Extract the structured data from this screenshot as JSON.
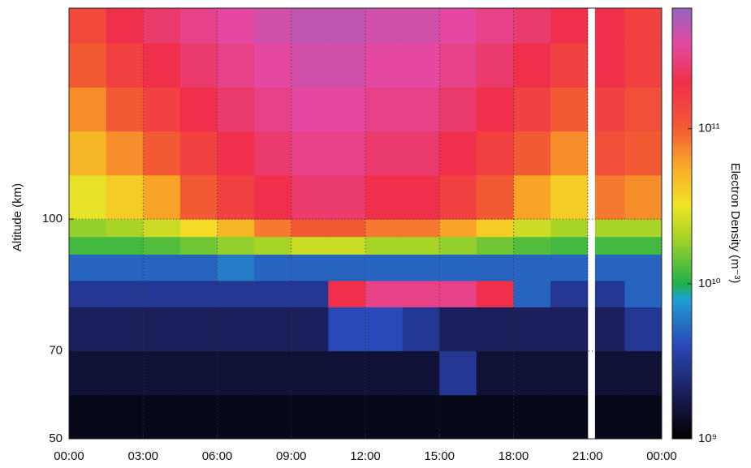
{
  "chart_data": {
    "type": "heatmap",
    "ylabel": "Altitude (km)",
    "colorbar_label": "Electron Density (m⁻³)",
    "xlim": [
      0,
      24
    ],
    "xticks": [
      {
        "value": 0,
        "label": "00:00"
      },
      {
        "value": 3,
        "label": "03:00"
      },
      {
        "value": 6,
        "label": "06:00"
      },
      {
        "value": 9,
        "label": "09:00"
      },
      {
        "value": 12,
        "label": "12:00"
      },
      {
        "value": 15,
        "label": "15:00"
      },
      {
        "value": 18,
        "label": "18:00"
      },
      {
        "value": 21,
        "label": "21:00"
      },
      {
        "value": 24,
        "label": "00:00"
      }
    ],
    "ylim": [
      50,
      148
    ],
    "yticks": [
      50,
      70,
      100
    ],
    "grid": true,
    "log_color": true,
    "clim": [
      1000000000.0,
      600000000000.0
    ],
    "cticks": [
      {
        "value": 1000000000.0,
        "label": "10⁹"
      },
      {
        "value": 10000000000.0,
        "label": "10¹⁰"
      },
      {
        "value": 100000000000.0,
        "label": "10¹¹"
      }
    ],
    "colorscale": [
      {
        "value": 1000000000.0,
        "color": "#000000"
      },
      {
        "value": 2000000000.0,
        "color": "#1a1f5c"
      },
      {
        "value": 4000000000.0,
        "color": "#2a48b8"
      },
      {
        "value": 8000000000.0,
        "color": "#1f9fd0"
      },
      {
        "value": 10000000000.0,
        "color": "#20b048"
      },
      {
        "value": 20000000000.0,
        "color": "#a8d428"
      },
      {
        "value": 32000000000.0,
        "color": "#f2e426"
      },
      {
        "value": 60000000000.0,
        "color": "#f8a428"
      },
      {
        "value": 100000000000.0,
        "color": "#f25a34"
      },
      {
        "value": 200000000000.0,
        "color": "#f0304a"
      },
      {
        "value": 350000000000.0,
        "color": "#e448a0"
      },
      {
        "value": 600000000000.0,
        "color": "#9464c0"
      }
    ],
    "x_edges": [
      0,
      1.5,
      3,
      4.5,
      6,
      7.5,
      9,
      10.5,
      12,
      13.5,
      15,
      16.5,
      18,
      19.5,
      21,
      21.3,
      22.5,
      24
    ],
    "y_edges": [
      50,
      60,
      70,
      80,
      86,
      92,
      96,
      100,
      110,
      120,
      130,
      140,
      148
    ],
    "values": [
      [
        1200000000.0,
        1200000000.0,
        1200000000.0,
        1200000000.0,
        1200000000.0,
        1200000000.0,
        1200000000.0,
        1200000000.0,
        1200000000.0,
        1200000000.0,
        1200000000.0,
        1200000000.0,
        1200000000.0,
        1200000000.0,
        null,
        1200000000.0,
        1200000000.0
      ],
      [
        1500000000.0,
        1500000000.0,
        1500000000.0,
        1500000000.0,
        1500000000.0,
        1500000000.0,
        1500000000.0,
        1500000000.0,
        1500000000.0,
        1500000000.0,
        3000000000.0,
        1500000000.0,
        1500000000.0,
        1500000000.0,
        null,
        1500000000.0,
        1500000000.0
      ],
      [
        2000000000.0,
        2000000000.0,
        2000000000.0,
        2000000000.0,
        2000000000.0,
        2000000000.0,
        2000000000.0,
        4000000000.0,
        4000000000.0,
        3000000000.0,
        2000000000.0,
        2000000000.0,
        2000000000.0,
        2000000000.0,
        null,
        2000000000.0,
        3000000000.0
      ],
      [
        3000000000.0,
        3000000000.0,
        3000000000.0,
        3000000000.0,
        3000000000.0,
        3000000000.0,
        3000000000.0,
        200000000000.0,
        300000000000.0,
        300000000000.0,
        300000000000.0,
        200000000000.0,
        5000000000.0,
        3000000000.0,
        null,
        3000000000.0,
        5000000000.0
      ],
      [
        5000000000.0,
        5000000000.0,
        5000000000.0,
        5000000000.0,
        6000000000.0,
        5000000000.0,
        5000000000.0,
        5000000000.0,
        5000000000.0,
        5000000000.0,
        5000000000.0,
        5000000000.0,
        5000000000.0,
        5000000000.0,
        null,
        5000000000.0,
        5000000000.0
      ],
      [
        12000000000.0,
        12000000000.0,
        13000000000.0,
        15000000000.0,
        18000000000.0,
        20000000000.0,
        25000000000.0,
        25000000000.0,
        20000000000.0,
        20000000000.0,
        18000000000.0,
        15000000000.0,
        13000000000.0,
        12000000000.0,
        null,
        12000000000.0,
        12000000000.0
      ],
      [
        18000000000.0,
        20000000000.0,
        25000000000.0,
        35000000000.0,
        50000000000.0,
        80000000000.0,
        100000000000.0,
        100000000000.0,
        80000000000.0,
        80000000000.0,
        60000000000.0,
        40000000000.0,
        25000000000.0,
        20000000000.0,
        null,
        20000000000.0,
        20000000000.0
      ],
      [
        30000000000.0,
        40000000000.0,
        60000000000.0,
        100000000000.0,
        150000000000.0,
        200000000000.0,
        250000000000.0,
        250000000000.0,
        200000000000.0,
        200000000000.0,
        150000000000.0,
        100000000000.0,
        60000000000.0,
        40000000000.0,
        null,
        80000000000.0,
        70000000000.0
      ],
      [
        50000000000.0,
        70000000000.0,
        100000000000.0,
        150000000000.0,
        200000000000.0,
        250000000000.0,
        300000000000.0,
        300000000000.0,
        250000000000.0,
        250000000000.0,
        200000000000.0,
        150000000000.0,
        100000000000.0,
        70000000000.0,
        null,
        120000000000.0,
        100000000000.0
      ],
      [
        70000000000.0,
        100000000000.0,
        150000000000.0,
        200000000000.0,
        250000000000.0,
        300000000000.0,
        350000000000.0,
        350000000000.0,
        300000000000.0,
        300000000000.0,
        250000000000.0,
        200000000000.0,
        150000000000.0,
        100000000000.0,
        null,
        150000000000.0,
        120000000000.0
      ],
      [
        100000000000.0,
        150000000000.0,
        200000000000.0,
        250000000000.0,
        300000000000.0,
        350000000000.0,
        400000000000.0,
        400000000000.0,
        350000000000.0,
        350000000000.0,
        300000000000.0,
        250000000000.0,
        200000000000.0,
        150000000000.0,
        null,
        200000000000.0,
        150000000000.0
      ],
      [
        130000000000.0,
        200000000000.0,
        250000000000.0,
        300000000000.0,
        350000000000.0,
        400000000000.0,
        450000000000.0,
        450000000000.0,
        400000000000.0,
        400000000000.0,
        350000000000.0,
        300000000000.0,
        250000000000.0,
        200000000000.0,
        null,
        200000000000.0,
        150000000000.0
      ]
    ]
  }
}
